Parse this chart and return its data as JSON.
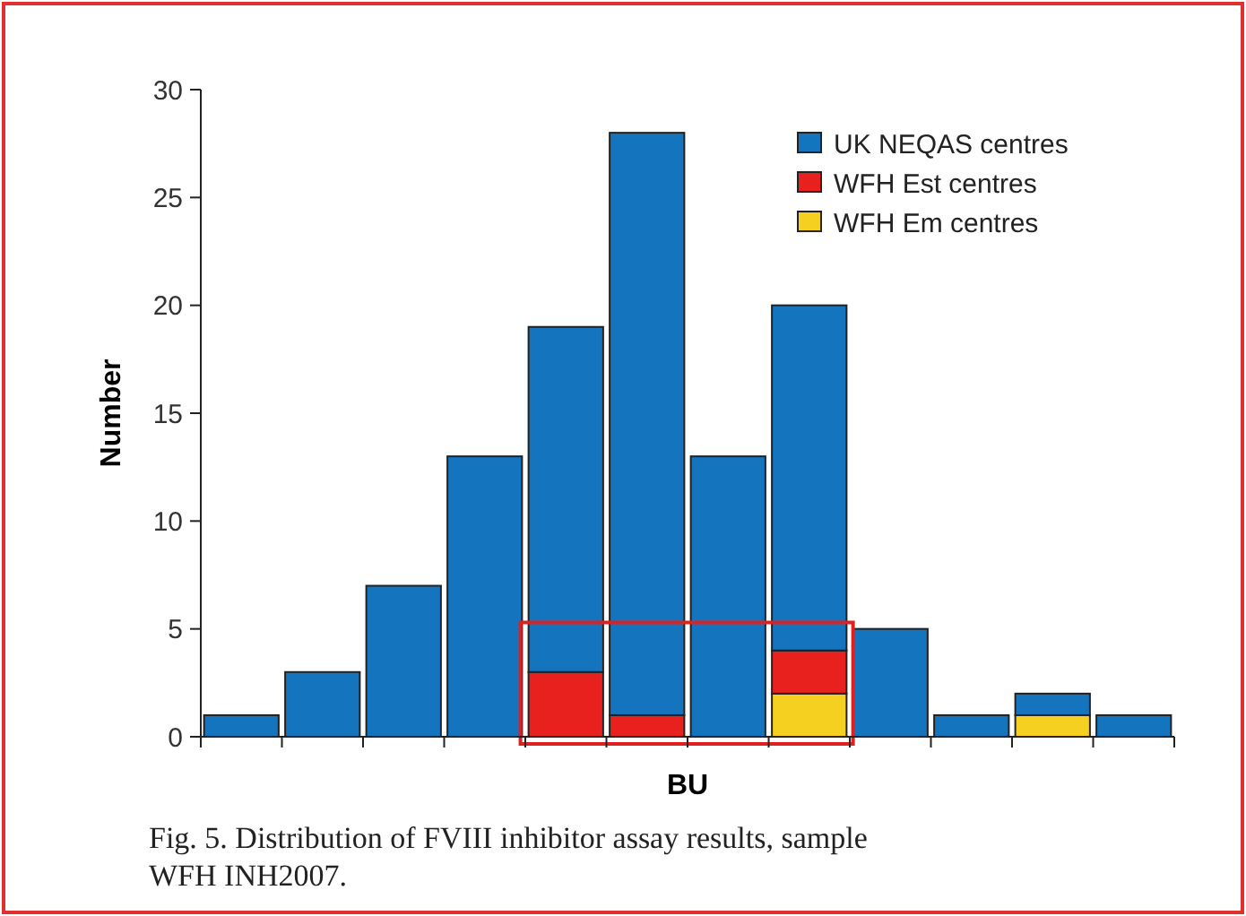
{
  "chart_data": {
    "type": "bar",
    "stacked": true,
    "xlabel": "BU",
    "ylabel": "Number",
    "categories": [
      null,
      null,
      null,
      null,
      null,
      null,
      null,
      null,
      null,
      null,
      null,
      null
    ],
    "series": [
      {
        "name": "WFH Em centres",
        "color": "#f5d020",
        "values": [
          0,
          0,
          0,
          0,
          0,
          0,
          0,
          2,
          0,
          0,
          1,
          0
        ]
      },
      {
        "name": "WFH Est centres",
        "color": "#e8211f",
        "values": [
          0,
          0,
          0,
          0,
          3,
          1,
          0,
          2,
          0,
          0,
          0,
          0
        ]
      },
      {
        "name": "UK NEQAS centres",
        "color": "#1574be",
        "values": [
          1,
          3,
          7,
          13,
          16,
          27,
          13,
          16,
          5,
          1,
          1,
          1
        ]
      }
    ],
    "ylim": [
      0,
      30
    ],
    "yticks": [
      0,
      5,
      10,
      15,
      20,
      25,
      30
    ],
    "legend": "top right",
    "annotations": [
      "Fig. 5. Distribution of FVIII inhibitor assay results, sample WFH INH2007."
    ]
  }
}
